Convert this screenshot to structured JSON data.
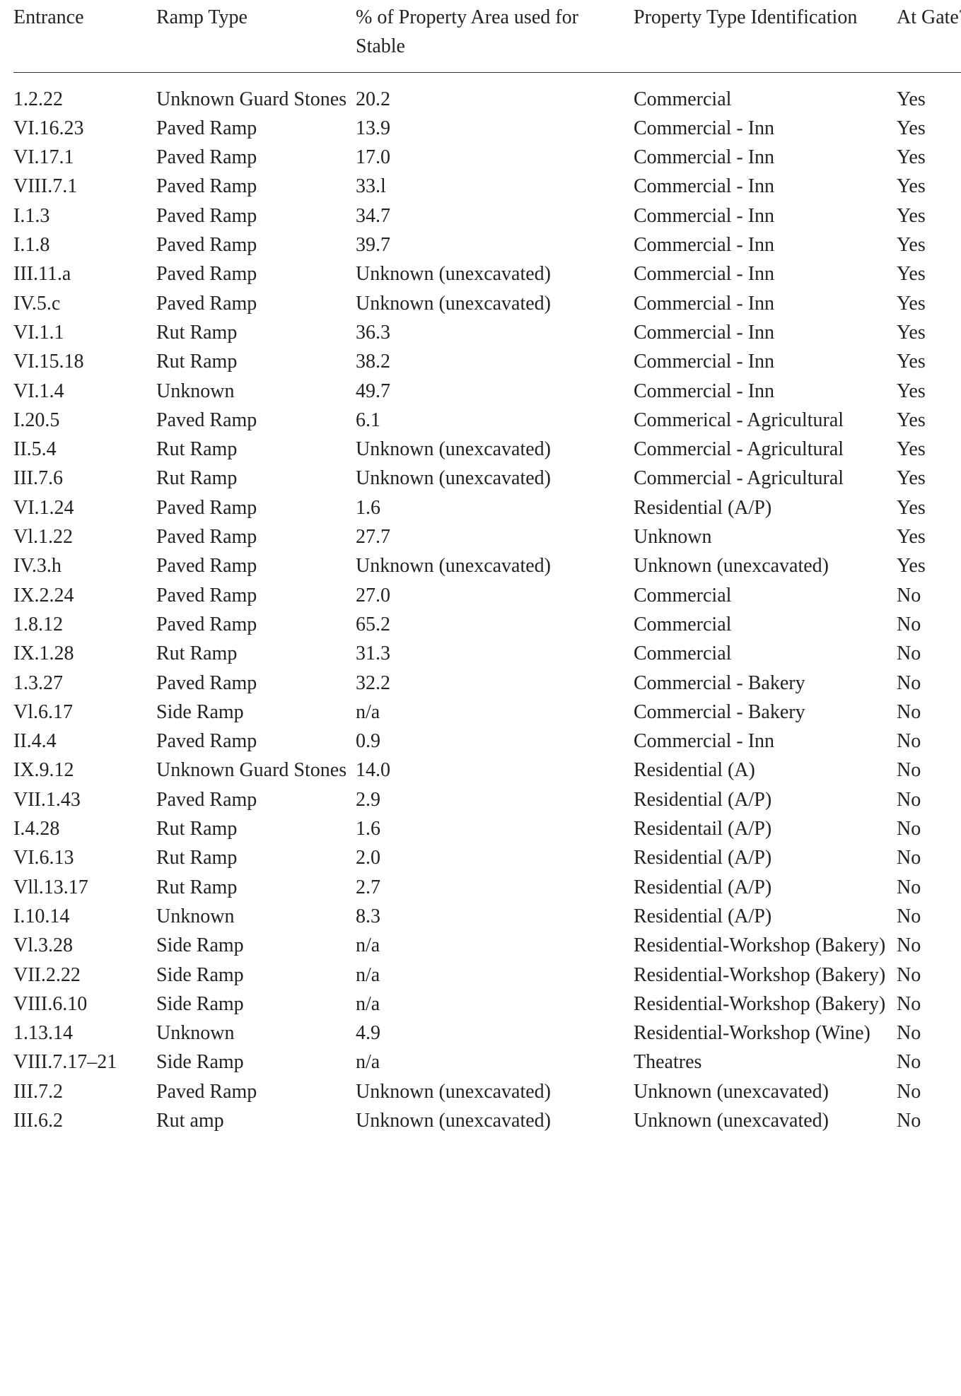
{
  "table": {
    "header": [
      "Entrance",
      "Ramp Type",
      "% of Property Area used for Stable",
      "Property Type Identification",
      "At Gate?"
    ],
    "rows": [
      [
        "1.2.22",
        "Unknown Guard Stones",
        "20.2",
        "Commercial",
        "Yes"
      ],
      [
        "VI.16.23",
        "Paved Ramp",
        "13.9",
        "Commercial - Inn",
        "Yes"
      ],
      [
        "VI.17.1",
        "Paved Ramp",
        "17.0",
        "Commercial - Inn",
        "Yes"
      ],
      [
        "VIII.7.1",
        "Paved Ramp",
        "33.l",
        "Commercial - Inn",
        "Yes"
      ],
      [
        "I.1.3",
        "Paved Ramp",
        "34.7",
        "Commercial - Inn",
        "Yes"
      ],
      [
        "I.1.8",
        "Paved Ramp",
        "39.7",
        "Commercial - Inn",
        "Yes"
      ],
      [
        "III.11.a",
        "Paved Ramp",
        "Unknown (unexcavated)",
        "Commercial - Inn",
        "Yes"
      ],
      [
        "IV.5.c",
        "Paved Ramp",
        "Unknown (unexcavated)",
        "Commercial - Inn",
        "Yes"
      ],
      [
        "VI.1.1",
        "Rut Ramp",
        "36.3",
        "Commercial - Inn",
        "Yes"
      ],
      [
        "VI.15.18",
        "Rut Ramp",
        "38.2",
        "Commercial - Inn",
        "Yes"
      ],
      [
        "VI.1.4",
        "Unknown",
        "49.7",
        "Commercial - Inn",
        "Yes"
      ],
      [
        "I.20.5",
        "Paved Ramp",
        "6.1",
        "Commerical - Agricultural",
        "Yes"
      ],
      [
        "II.5.4",
        "Rut Ramp",
        "Unknown (unexcavated)",
        "Commercial - Agricultural",
        "Yes"
      ],
      [
        "III.7.6",
        "Rut Ramp",
        "Unknown (unexcavated)",
        "Commercial - Agricultural",
        "Yes"
      ],
      [
        "VI.1.24",
        "Paved Ramp",
        "1.6",
        "Residential (A/P)",
        "Yes"
      ],
      [
        "Vl.1.22",
        "Paved Ramp",
        "27.7",
        "Unknown",
        "Yes"
      ],
      [
        "IV.3.h",
        "Paved Ramp",
        "Unknown (unexcavated)",
        "Unknown (unexcavated)",
        "Yes"
      ],
      [
        "IX.2.24",
        "Paved Ramp",
        "27.0",
        "Commercial",
        "No"
      ],
      [
        "1.8.12",
        "Paved Ramp",
        "65.2",
        "Commercial",
        "No"
      ],
      [
        "IX.1.28",
        "Rut Ramp",
        "31.3",
        "Commercial",
        "No"
      ],
      [
        "1.3.27",
        "Paved Ramp",
        "32.2",
        "Commercial - Bakery",
        "No"
      ],
      [
        "Vl.6.17",
        "Side Ramp",
        "n/a",
        "Commercial - Bakery",
        "No"
      ],
      [
        "II.4.4",
        "Paved Ramp",
        "0.9",
        "Commercial - Inn",
        "No"
      ],
      [
        "IX.9.12",
        "Unknown Guard Stones",
        "14.0",
        "Residential (A)",
        "No"
      ],
      [
        "VII.1.43",
        "Paved Ramp",
        "2.9",
        "Residential (A/P)",
        "No"
      ],
      [
        "I.4.28",
        "Rut Ramp",
        "1.6",
        "Residentail (A/P)",
        "No"
      ],
      [
        "VI.6.13",
        "Rut Ramp",
        "2.0",
        "Residential (A/P)",
        "No"
      ],
      [
        "Vll.13.17",
        "Rut Ramp",
        "2.7",
        "Residential (A/P)",
        "No"
      ],
      [
        "I.10.14",
        "Unknown",
        "8.3",
        "Residential (A/P)",
        "No"
      ],
      [
        "Vl.3.28",
        "Side Ramp",
        "n/a",
        "Residential-Workshop (Bakery)",
        "No"
      ],
      [
        "VII.2.22",
        "Side Ramp",
        "n/a",
        "Residential-Workshop (Bakery)",
        "No"
      ],
      [
        "VIII.6.10",
        "Side Ramp",
        "n/a",
        "Residential-Workshop (Bakery)",
        "No"
      ],
      [
        "1.13.14",
        "Unknown",
        "4.9",
        "Residential-Workshop (Wine)",
        "No"
      ],
      [
        "VIII.7.17–21",
        "Side Ramp",
        "n/a",
        "Theatres",
        "No"
      ],
      [
        "III.7.2",
        "Paved Ramp",
        "Unknown (unexcavated)",
        "Unknown (unexcavated)",
        "No"
      ],
      [
        "III.6.2",
        "Rut amp",
        "Unknown (unexcavated)",
        "Unknown (unexcavated)",
        "No"
      ]
    ]
  }
}
